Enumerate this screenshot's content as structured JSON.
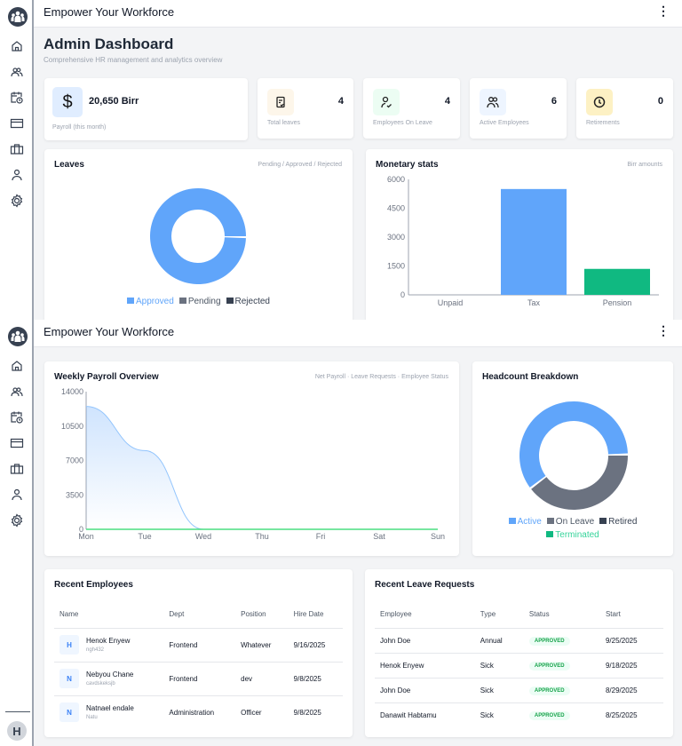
{
  "app_title": "Empower Your Workforce",
  "menu_icon": "more-vertical-icon",
  "user_initial": "H",
  "page": {
    "title": "Admin Dashboard",
    "subtitle": "Comprehensive HR management and analytics overview"
  },
  "stats": [
    {
      "value": "20,650 Birr",
      "label": "Payroll (this month)",
      "icon": "dollar-icon"
    },
    {
      "value": "4",
      "label": "Total leaves",
      "icon": "clipboard-check-icon"
    },
    {
      "value": "4",
      "label": "Employees On Leave",
      "icon": "user-check-icon"
    },
    {
      "value": "6",
      "label": "Active Employees",
      "icon": "users-icon"
    },
    {
      "value": "0",
      "label": "Retirements",
      "icon": "clock-icon"
    }
  ],
  "colors": {
    "blue": "#60a5fa",
    "gray": "#6b7280",
    "dark": "#374151",
    "green": "#10b981"
  },
  "chart_data": [
    {
      "type": "pie",
      "title": "Leaves",
      "subtitle": "Pending / Approved / Rejected",
      "categories": [
        "Approved",
        "Pending",
        "Rejected"
      ],
      "values": [
        4,
        0,
        0
      ]
    },
    {
      "type": "bar",
      "title": "Monetary stats",
      "subtitle": "Birr amounts",
      "categories": [
        "Unpaid",
        "Tax",
        "Pension"
      ],
      "values": [
        0,
        5500,
        1350
      ],
      "yticks": [
        "0",
        "1500",
        "3000",
        "4500",
        "6000"
      ],
      "ylim": [
        0,
        6000
      ]
    },
    {
      "type": "area",
      "title": "Weekly Payroll Overview",
      "subtitle": "Net Payroll · Leave Requests · Employee Status",
      "categories": [
        "Mon",
        "Tue",
        "Wed",
        "Thu",
        "Fri",
        "Sat",
        "Sun"
      ],
      "series": [
        {
          "name": "Net Payroll",
          "values": [
            12500,
            8000,
            0,
            0,
            0,
            0,
            0
          ]
        },
        {
          "name": "Leave Requests",
          "values": [
            0,
            0,
            0,
            0,
            0,
            0,
            0
          ]
        }
      ],
      "yticks": [
        "0",
        "3500",
        "7000",
        "10500",
        "14000"
      ],
      "ylim": [
        0,
        14000
      ]
    },
    {
      "type": "pie",
      "title": "Headcount Breakdown",
      "categories": [
        "Active",
        "On Leave",
        "Retired",
        "Terminated"
      ],
      "values": [
        6,
        4,
        0,
        0
      ]
    }
  ],
  "recent_employees": {
    "title": "Recent Employees",
    "columns": [
      "Name",
      "Dept",
      "Position",
      "Hire Date"
    ],
    "rows": [
      {
        "initial": "H",
        "name": "Henok Enyew",
        "sub": "ngh432",
        "dept": "Frontend",
        "position": "Whatever",
        "date": "9/16/2025"
      },
      {
        "initial": "N",
        "name": "Nebyou Chane",
        "sub": "cavdskeksjb",
        "dept": "Frontend",
        "position": "dev",
        "date": "9/8/2025"
      },
      {
        "initial": "N",
        "name": "Natnael endale",
        "sub": "Natu",
        "dept": "Administration",
        "position": "Officer",
        "date": "9/8/2025"
      }
    ]
  },
  "recent_leaves": {
    "title": "Recent Leave Requests",
    "columns": [
      "Employee",
      "Type",
      "Status",
      "Start"
    ],
    "rows": [
      {
        "employee": "John Doe",
        "type": "Annual",
        "status": "APPROVED",
        "start": "9/25/2025"
      },
      {
        "employee": "Henok Enyew",
        "type": "Sick",
        "status": "APPROVED",
        "start": "9/18/2025"
      },
      {
        "employee": "John Doe",
        "type": "Sick",
        "status": "APPROVED",
        "start": "8/29/2025"
      },
      {
        "employee": "Danawit Habtamu",
        "type": "Sick",
        "status": "APPROVED",
        "start": "8/25/2025"
      }
    ]
  }
}
